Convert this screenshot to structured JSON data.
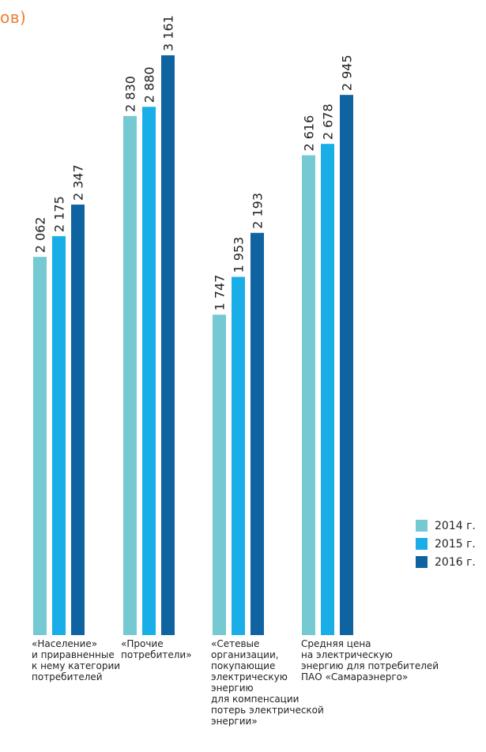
{
  "title_fragment": "ов)",
  "chart_data": {
    "type": "bar",
    "categories": [
      "«Население»\nи приравненные\nк нему категории\nпотребителей",
      "«Прочие\nпотребители»",
      "«Сетевые\nорганизации,\nпокупающие\nэлектрическую\nэнергию\nдля компенсации\nпотерь электрической\nэнергии»",
      "Средняя цена\nна электрическую\nэнергию для потребителей\nПАО «Самараэнерго»"
    ],
    "series": [
      {
        "name": "2014 г.",
        "color": "#74c9d2",
        "values": [
          2062,
          2830,
          1747,
          2616
        ],
        "labels": [
          "2 062",
          "2 830",
          "1 747",
          "2 616"
        ]
      },
      {
        "name": "2015 г.",
        "color": "#1aaee8",
        "values": [
          2175,
          2880,
          1953,
          2678
        ],
        "labels": [
          "2 175",
          "2 880",
          "1 953",
          "2 678"
        ]
      },
      {
        "name": "2016 г.",
        "color": "#0f63a0",
        "values": [
          2347,
          3161,
          2193,
          2945
        ],
        "labels": [
          "2 347",
          "3 161",
          "2 193",
          "2 945"
        ]
      }
    ],
    "ylim": [
      0,
      3161
    ],
    "grid": false,
    "legend": "right"
  }
}
